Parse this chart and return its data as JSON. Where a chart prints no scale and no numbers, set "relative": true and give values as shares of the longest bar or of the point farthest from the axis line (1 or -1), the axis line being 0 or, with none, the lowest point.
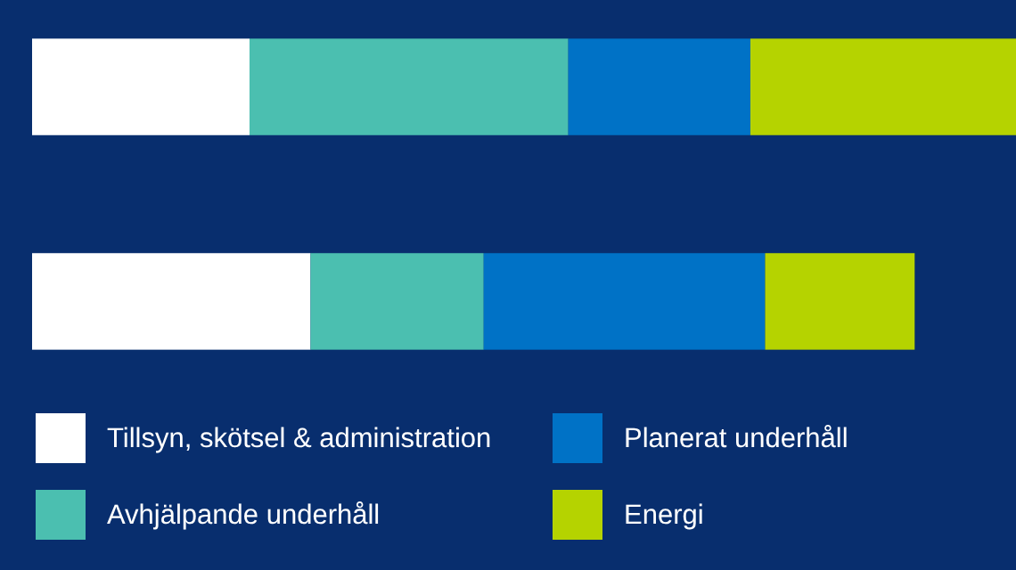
{
  "chart_data": {
    "type": "bar",
    "orientation": "horizontal",
    "stacked": true,
    "relative": true,
    "categories": [
      null,
      null
    ],
    "legend": "bottom",
    "series": [
      {
        "name": "Tillsyn, skötsel & administration",
        "color": "#ffffff",
        "values": [
          0.221,
          0.283
        ]
      },
      {
        "name": "Avhjälpande underhåll",
        "color": "#4bbfb0",
        "values": [
          0.324,
          0.176
        ]
      },
      {
        "name": "Planerat underhåll",
        "color": "#0072c6",
        "values": [
          0.185,
          0.286
        ]
      },
      {
        "name": "Energi",
        "color": "#b5d300",
        "values": [
          0.27,
          0.152
        ]
      }
    ]
  }
}
